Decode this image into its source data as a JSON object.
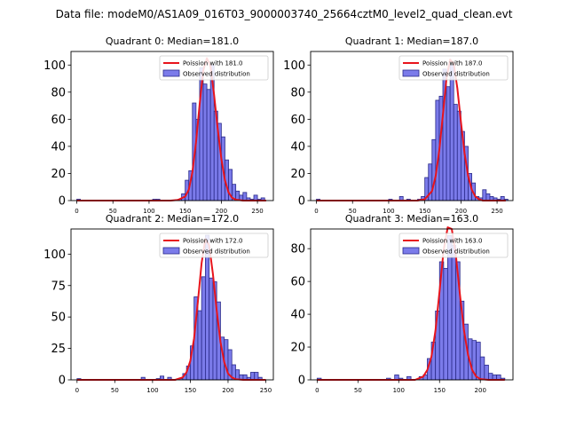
{
  "figure": {
    "suptitle": "Data file: modeM0/AS1A09_016T03_9000003740_25664cztM0_level2_quad_clean.evt"
  },
  "colors": {
    "hist_fill": "#7b7bea",
    "hist_edge": "#2a2a8a",
    "poisson_line": "#e8141c",
    "axis": "#000000"
  },
  "chart_data": [
    {
      "type": "bar",
      "title": "Quadrant 0: Median=181.0",
      "median": 181.0,
      "xlim": [
        -8,
        272
      ],
      "ylim": [
        0,
        110
      ],
      "xticks": [
        0,
        50,
        100,
        150,
        200,
        250
      ],
      "yticks": [
        0,
        20,
        40,
        60,
        80,
        100
      ],
      "legend_position": "top-right",
      "legend": [
        "Poission with 181.0",
        "Observed distribution"
      ],
      "bin_width": 5,
      "bin_left": [
        0,
        105,
        110,
        140,
        145,
        150,
        155,
        160,
        165,
        170,
        175,
        180,
        185,
        190,
        195,
        200,
        205,
        210,
        215,
        220,
        225,
        230,
        235,
        240,
        245,
        250,
        255
      ],
      "bin_count": [
        1,
        1,
        1,
        1,
        5,
        15,
        22,
        72,
        60,
        98,
        86,
        82,
        100,
        66,
        57,
        47,
        30,
        23,
        12,
        7,
        4,
        6,
        2,
        1,
        4,
        1,
        2
      ],
      "poisson_x": [
        0,
        100,
        130,
        140,
        150,
        155,
        160,
        165,
        170,
        175,
        180,
        185,
        190,
        195,
        200,
        205,
        210,
        215,
        220,
        230,
        240,
        262
      ],
      "poisson_y": [
        0,
        0,
        0,
        0.5,
        3,
        8,
        21,
        43,
        71,
        96,
        105,
        99,
        78,
        53,
        31,
        15,
        6,
        2,
        0.7,
        0,
        0,
        0
      ]
    },
    {
      "type": "bar",
      "title": "Quadrant 1: Median=187.0",
      "median": 187.0,
      "xlim": [
        -8,
        272
      ],
      "ylim": [
        0,
        110
      ],
      "xticks": [
        0,
        50,
        100,
        150,
        200,
        250
      ],
      "yticks": [
        0,
        20,
        40,
        60,
        80,
        100
      ],
      "legend_position": "top-right",
      "legend": [
        "Poission with 187.0",
        "Observed distribution"
      ],
      "bin_width": 5,
      "bin_left": [
        0,
        100,
        115,
        125,
        140,
        145,
        150,
        155,
        160,
        165,
        170,
        175,
        180,
        185,
        190,
        195,
        200,
        205,
        210,
        215,
        220,
        225,
        230,
        235,
        240,
        245,
        250,
        255,
        260
      ],
      "bin_count": [
        1,
        1,
        3,
        1,
        1,
        3,
        17,
        27,
        45,
        74,
        77,
        97,
        84,
        100,
        71,
        66,
        51,
        40,
        20,
        13,
        3,
        2,
        8,
        5,
        3,
        2,
        1,
        3,
        1
      ],
      "poisson_x": [
        0,
        110,
        140,
        150,
        160,
        165,
        170,
        175,
        180,
        185,
        190,
        195,
        200,
        205,
        210,
        215,
        220,
        225,
        230,
        240,
        262
      ],
      "poisson_y": [
        0,
        0,
        0,
        1,
        7,
        18,
        37,
        63,
        90,
        104,
        101,
        83,
        58,
        35,
        18,
        8,
        3,
        1,
        0,
        0,
        0
      ]
    },
    {
      "type": "bar",
      "title": "Quadrant 2: Median=172.0",
      "median": 172.0,
      "xlim": [
        -8,
        260
      ],
      "ylim": [
        0,
        120
      ],
      "xticks": [
        0,
        50,
        100,
        150,
        200,
        250
      ],
      "yticks": [
        0,
        25,
        50,
        75,
        100
      ],
      "legend_position": "top-right",
      "legend": [
        "Poission with 172.0",
        "Observed distribution"
      ],
      "bin_width": 5,
      "bin_left": [
        0,
        85,
        105,
        110,
        120,
        135,
        140,
        145,
        150,
        155,
        160,
        165,
        170,
        175,
        180,
        185,
        190,
        195,
        200,
        205,
        210,
        215,
        220,
        225,
        230,
        235,
        240
      ],
      "bin_count": [
        1,
        2,
        1,
        3,
        2,
        1,
        5,
        11,
        27,
        66,
        55,
        82,
        115,
        81,
        78,
        62,
        34,
        32,
        24,
        12,
        8,
        4,
        4,
        2,
        6,
        6,
        2
      ],
      "poisson_x": [
        0,
        110,
        130,
        140,
        145,
        150,
        155,
        160,
        165,
        170,
        175,
        180,
        185,
        190,
        195,
        200,
        205,
        210,
        220,
        250
      ],
      "poisson_y": [
        0,
        0,
        0,
        2,
        6,
        15,
        33,
        62,
        93,
        112,
        107,
        84,
        55,
        30,
        14,
        5,
        2,
        0.5,
        0,
        0
      ]
    },
    {
      "type": "bar",
      "title": "Quadrant 3: Median=163.0",
      "median": 163.0,
      "xlim": [
        -8,
        240
      ],
      "ylim": [
        0,
        92
      ],
      "xticks": [
        0,
        50,
        100,
        150,
        200
      ],
      "yticks": [
        0,
        20,
        40,
        60,
        80
      ],
      "legend_position": "top-right",
      "legend": [
        "Poission with 163.0",
        "Observed distribution"
      ],
      "bin_width": 5,
      "bin_left": [
        0,
        85,
        95,
        100,
        110,
        125,
        130,
        135,
        140,
        145,
        150,
        155,
        160,
        165,
        170,
        175,
        180,
        185,
        190,
        195,
        200,
        205,
        210,
        215,
        220,
        225
      ],
      "bin_count": [
        1,
        1,
        3,
        1,
        2,
        2,
        3,
        13,
        23,
        42,
        72,
        68,
        88,
        82,
        72,
        48,
        34,
        25,
        24,
        23,
        14,
        9,
        4,
        3,
        3,
        1
      ],
      "poisson_x": [
        0,
        100,
        120,
        130,
        135,
        140,
        145,
        150,
        155,
        160,
        165,
        170,
        175,
        180,
        185,
        190,
        195,
        200,
        210,
        230
      ],
      "poisson_y": [
        0,
        0,
        0,
        2,
        6,
        14,
        30,
        54,
        79,
        93,
        92,
        76,
        52,
        30,
        15,
        6,
        2,
        0.5,
        0,
        0
      ]
    }
  ]
}
